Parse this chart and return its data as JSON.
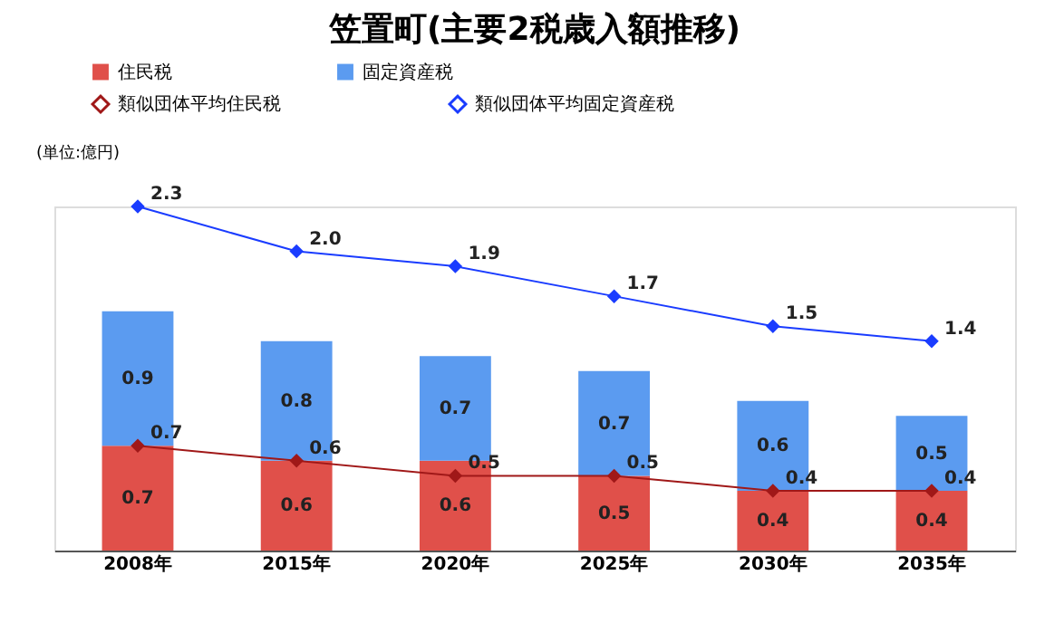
{
  "chart_data": {
    "type": "bar",
    "title": "笠置町(主要2税歳入額推移)",
    "categories": [
      "2008年",
      "2015年",
      "2020年",
      "2025年",
      "2030年",
      "2035年"
    ],
    "stacked": true,
    "annotations": [
      "(単位:億円)"
    ],
    "grid": false,
    "legend": "top",
    "marker": "diamond",
    "series": [
      {
        "name": "住民税",
        "type": "bar",
        "color": "#e0504a",
        "values": [
          0.7,
          0.6,
          0.6,
          0.5,
          0.4,
          0.4
        ],
        "value_labels": [
          "0.7",
          "0.6",
          "0.6",
          "0.5",
          "0.4",
          "0.4"
        ]
      },
      {
        "name": "固定資産税",
        "type": "bar",
        "color": "#5b9bf0",
        "values": [
          0.9,
          0.8,
          0.7,
          0.7,
          0.6,
          0.5
        ],
        "value_labels": [
          "0.9",
          "0.8",
          "0.7",
          "0.7",
          "0.6",
          "0.5"
        ]
      },
      {
        "name": "類似団体平均住民税",
        "type": "line",
        "color": "#a01818",
        "values": [
          0.7,
          0.6,
          0.5,
          0.5,
          0.4,
          0.4
        ],
        "value_labels": [
          "0.7",
          "0.6",
          "0.5",
          "0.5",
          "0.4",
          "0.4"
        ]
      },
      {
        "name": "類似団体平均固定資産税",
        "type": "line",
        "color": "#1a3cff",
        "values": [
          2.3,
          2.0,
          1.9,
          1.7,
          1.5,
          1.4
        ],
        "value_labels": [
          "2.3",
          "2.0",
          "1.9",
          "1.7",
          "1.5",
          "1.4"
        ]
      }
    ]
  }
}
